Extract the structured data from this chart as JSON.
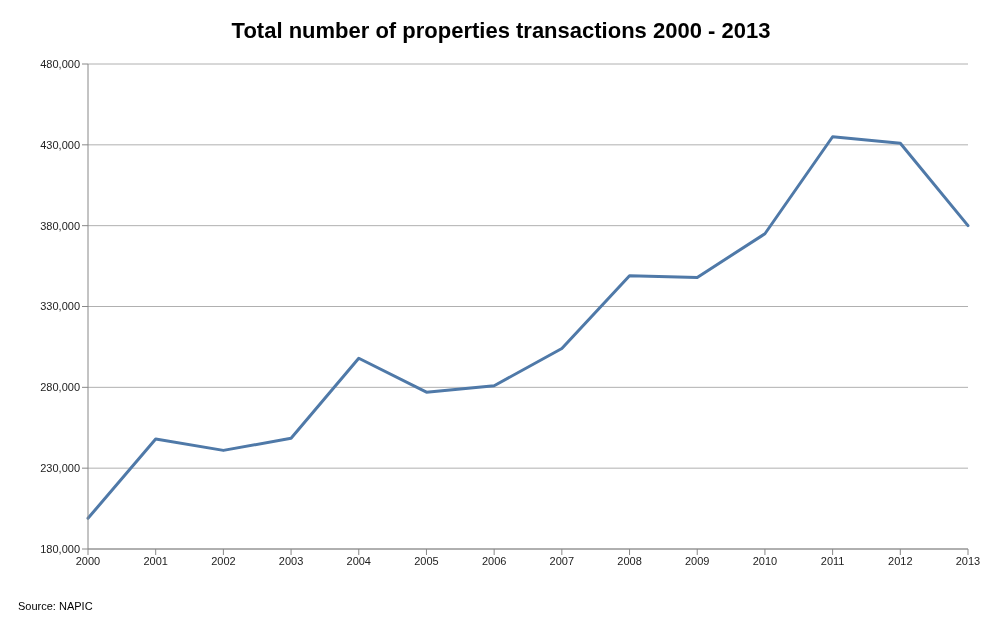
{
  "chart_data": {
    "type": "line",
    "title": "Total number of properties transactions 2000 - 2013",
    "categories": [
      "2000",
      "2001",
      "2002",
      "2003",
      "2004",
      "2005",
      "2006",
      "2007",
      "2008",
      "2009",
      "2010",
      "2011",
      "2012",
      "2013"
    ],
    "series": [
      {
        "color": "#4f79a8",
        "values": [
          199000,
          248000,
          241000,
          248500,
          298000,
          277000,
          281000,
          304000,
          349000,
          348000,
          375000,
          435000,
          431000,
          380000
        ]
      }
    ],
    "ylim": [
      180000,
      480000
    ],
    "yticks": [
      {
        "value": 180000,
        "label": "180,000"
      },
      {
        "value": 230000,
        "label": "230,000"
      },
      {
        "value": 280000,
        "label": "280,000"
      },
      {
        "value": 330000,
        "label": "330,000"
      },
      {
        "value": 380000,
        "label": "380,000"
      },
      {
        "value": 430000,
        "label": "430,000"
      },
      {
        "value": 480000,
        "label": "480,000"
      }
    ],
    "grid": "y",
    "legend": false,
    "marker": "none",
    "line_style": "solid",
    "annotations": [
      "Source: NAPIC"
    ]
  }
}
